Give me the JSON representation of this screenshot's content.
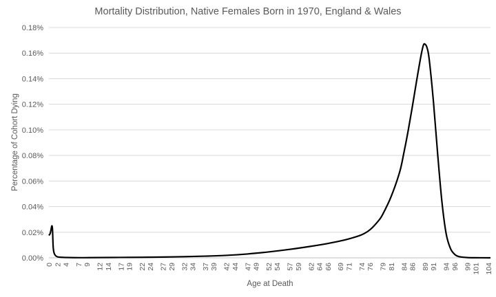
{
  "chart_data": {
    "type": "line",
    "title": "Mortality Distribution, Native Females Born in 1970, England & Wales",
    "xlabel": "Age at Death",
    "ylabel": "Percentage of Cohort Dying",
    "xlim": [
      0,
      104.5
    ],
    "ylim": [
      0,
      0.0018
    ],
    "grid": true,
    "legend": "none",
    "y_ticks": [
      "0.00%",
      "0.02%",
      "0.04%",
      "0.06%",
      "0.08%",
      "0.10%",
      "0.12%",
      "0.14%",
      "0.16%",
      "0.18%"
    ],
    "x_ticks": [
      "0",
      "2",
      "4",
      "7",
      "9",
      "12",
      "14",
      "17",
      "19",
      "22",
      "24",
      "27",
      "29",
      "32",
      "34",
      "37",
      "39",
      "42",
      "44",
      "47",
      "49",
      "52",
      "54",
      "57",
      "59",
      "62",
      "64",
      "66",
      "69",
      "71",
      "74",
      "76",
      "79",
      "81",
      "84",
      "86",
      "89",
      "91",
      "94",
      "96",
      "99",
      "101",
      "104"
    ],
    "series": [
      {
        "color": "#000000",
        "x": [
          0,
          0.3,
          0.5,
          0.7,
          0.85,
          1.0,
          1.2,
          1.5,
          2,
          3,
          5,
          8,
          12,
          17,
          22,
          27,
          32,
          37,
          42,
          47,
          52,
          57,
          62,
          66,
          69,
          71,
          74,
          76,
          78,
          79,
          81,
          83,
          84,
          85,
          86,
          87,
          88,
          88.6,
          89,
          89.5,
          90,
          91,
          92,
          93,
          94,
          95,
          96,
          97,
          99,
          101,
          104,
          104.5
        ],
        "y": [
          0.000175,
          0.00019,
          0.00022,
          0.00025,
          0.00022,
          9e-05,
          4e-05,
          2e-05,
          8e-06,
          4e-06,
          2e-06,
          1e-06,
          2e-06,
          3e-06,
          4e-06,
          6e-06,
          9e-06,
          1.3e-05,
          1.9e-05,
          3e-05,
          4.6e-05,
          6.6e-05,
          9e-05,
          0.000112,
          0.000132,
          0.000148,
          0.00018,
          0.00022,
          0.00029,
          0.00034,
          0.00048,
          0.00067,
          0.00082,
          0.00099,
          0.00118,
          0.00138,
          0.00157,
          0.00166,
          0.00167,
          0.00164,
          0.00155,
          0.00122,
          0.00081,
          0.00044,
          0.00019,
          7.5e-05,
          2.8e-05,
          1e-05,
          2e-06,
          5e-07,
          1e-07,
          1e-07
        ]
      }
    ]
  }
}
